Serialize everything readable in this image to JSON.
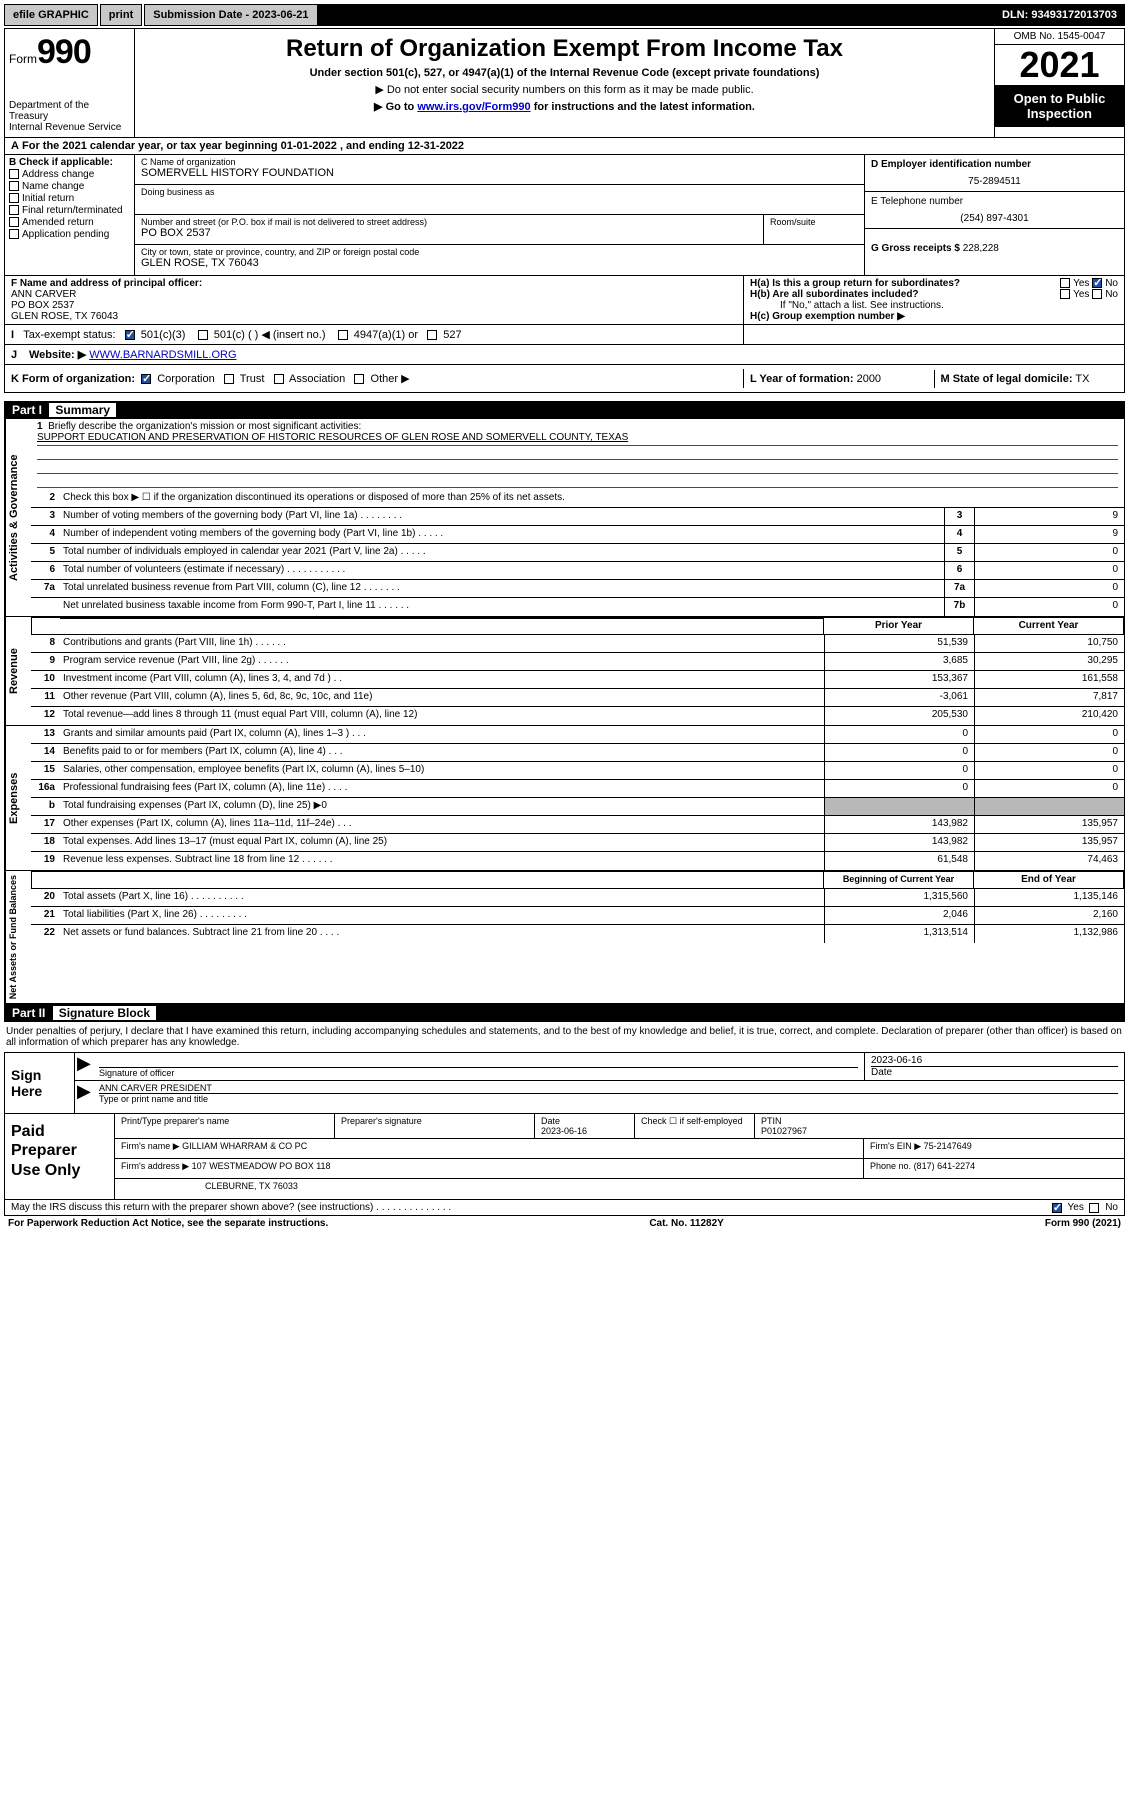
{
  "topbar": {
    "efile": "efile GRAPHIC",
    "print": "print",
    "submission_label": "Submission Date - 2023-06-21",
    "dln": "DLN: 93493172013703"
  },
  "header": {
    "form_prefix": "Form",
    "form_number": "990",
    "dept": "Department of the Treasury\nInternal Revenue Service",
    "title": "Return of Organization Exempt From Income Tax",
    "sub1": "Under section 501(c), 527, or 4947(a)(1) of the Internal Revenue Code (except private foundations)",
    "sub2": "▶ Do not enter social security numbers on this form as it may be made public.",
    "sub3_pre": "▶ Go to ",
    "sub3_link": "www.irs.gov/Form990",
    "sub3_post": " for instructions and the latest information.",
    "omb": "OMB No. 1545-0047",
    "year": "2021",
    "otp": "Open to Public Inspection"
  },
  "lineA": "For the 2021 calendar year, or tax year beginning 01-01-2022   , and ending 12-31-2022",
  "boxB": {
    "label": "B Check if applicable:",
    "items": [
      "Address change",
      "Name change",
      "Initial return",
      "Final return/terminated",
      "Amended return",
      "Application pending"
    ]
  },
  "boxC": {
    "name_label": "C Name of organization",
    "name": "SOMERVELL HISTORY FOUNDATION",
    "dba_label": "Doing business as",
    "dba": "",
    "addr_label": "Number and street (or P.O. box if mail is not delivered to street address)",
    "suite_label": "Room/suite",
    "addr": "PO BOX 2537",
    "city_label": "City or town, state or province, country, and ZIP or foreign postal code",
    "city": "GLEN ROSE, TX  76043"
  },
  "boxD": {
    "label": "D Employer identification number",
    "val": "75-2894511"
  },
  "boxE": {
    "label": "E Telephone number",
    "val": "(254) 897-4301"
  },
  "boxG": {
    "label": "G Gross receipts $",
    "val": "228,228"
  },
  "boxF": {
    "label": "F Name and address of principal officer:",
    "name": "ANN CARVER",
    "addr1": "PO BOX 2537",
    "addr2": "GLEN ROSE, TX  76043"
  },
  "boxH": {
    "a": "H(a)  Is this a group return for subordinates?",
    "b": "H(b)  Are all subordinates included?",
    "b_note": "If \"No,\" attach a list. See instructions.",
    "c": "H(c)  Group exemption number ▶"
  },
  "lineI": {
    "label": "Tax-exempt status:",
    "opts": [
      "501(c)(3)",
      "501(c) (  ) ◀ (insert no.)",
      "4947(a)(1) or",
      "527"
    ]
  },
  "lineJ": {
    "label": "Website: ▶",
    "val": "WWW.BARNARDSMILL.ORG"
  },
  "lineK": {
    "label": "K Form of organization:",
    "opts": [
      "Corporation",
      "Trust",
      "Association",
      "Other ▶"
    ]
  },
  "lineL": {
    "label": "L Year of formation:",
    "val": "2000"
  },
  "lineM": {
    "label": "M State of legal domicile:",
    "val": "TX"
  },
  "part1": {
    "header": "Part I",
    "title": "Summary",
    "q1": "Briefly describe the organization's mission or most significant activities:",
    "mission": "SUPPORT EDUCATION AND PRESERVATION OF HISTORIC RESOURCES OF GLEN ROSE AND SOMERVELL COUNTY, TEXAS",
    "q2": "Check this box ▶ ☐  if the organization discontinued its operations or disposed of more than 25% of its net assets.",
    "rows_gov": [
      {
        "n": "3",
        "t": "Number of voting members of the governing body (Part VI, line 1a)   .    .    .    .    .    .    .    .",
        "cn": "3",
        "v": "9"
      },
      {
        "n": "4",
        "t": "Number of independent voting members of the governing body (Part VI, line 1b)  .    .    .    .    .",
        "cn": "4",
        "v": "9"
      },
      {
        "n": "5",
        "t": "Total number of individuals employed in calendar year 2021 (Part V, line 2a)    .    .    .    .    .",
        "cn": "5",
        "v": "0"
      },
      {
        "n": "6",
        "t": "Total number of volunteers (estimate if necessary)   .    .    .    .    .    .    .    .    .    .    .",
        "cn": "6",
        "v": "0"
      },
      {
        "n": "7a",
        "t": "Total unrelated business revenue from Part VIII, column (C), line 12   .    .    .    .    .    .    .",
        "cn": "7a",
        "v": "0"
      },
      {
        "n": "",
        "t": "Net unrelated business taxable income from Form 990-T, Part I, line 11   .    .    .    .    .    .",
        "cn": "7b",
        "v": "0"
      }
    ],
    "col_hdr1": "Prior Year",
    "col_hdr2": "Current Year",
    "rows_rev": [
      {
        "n": "8",
        "t": "Contributions and grants (Part VIII, line 1h)   .    .    .    .    .    .",
        "c1": "51,539",
        "c2": "10,750"
      },
      {
        "n": "9",
        "t": "Program service revenue (Part VIII, line 2g)   .    .    .    .    .    .",
        "c1": "3,685",
        "c2": "30,295"
      },
      {
        "n": "10",
        "t": "Investment income (Part VIII, column (A), lines 3, 4, and 7d )   .    .",
        "c1": "153,367",
        "c2": "161,558"
      },
      {
        "n": "11",
        "t": "Other revenue (Part VIII, column (A), lines 5, 6d, 8c, 9c, 10c, and 11e)",
        "c1": "-3,061",
        "c2": "7,817"
      },
      {
        "n": "12",
        "t": "Total revenue—add lines 8 through 11 (must equal Part VIII, column (A), line 12)",
        "c1": "205,530",
        "c2": "210,420"
      }
    ],
    "rows_exp": [
      {
        "n": "13",
        "t": "Grants and similar amounts paid (Part IX, column (A), lines 1–3 )   .    .    .",
        "c1": "0",
        "c2": "0"
      },
      {
        "n": "14",
        "t": "Benefits paid to or for members (Part IX, column (A), line 4)   .    .    .",
        "c1": "0",
        "c2": "0"
      },
      {
        "n": "15",
        "t": "Salaries, other compensation, employee benefits (Part IX, column (A), lines 5–10)",
        "c1": "0",
        "c2": "0"
      },
      {
        "n": "16a",
        "t": "Professional fundraising fees (Part IX, column (A), line 11e)   .    .    .    .",
        "c1": "0",
        "c2": "0"
      },
      {
        "n": "b",
        "t": "Total fundraising expenses (Part IX, column (D), line 25) ▶0",
        "c1": "",
        "c2": "",
        "grey": true
      },
      {
        "n": "17",
        "t": "Other expenses (Part IX, column (A), lines 11a–11d, 11f–24e)  .    .    .",
        "c1": "143,982",
        "c2": "135,957"
      },
      {
        "n": "18",
        "t": "Total expenses. Add lines 13–17 (must equal Part IX, column (A), line 25)",
        "c1": "143,982",
        "c2": "135,957"
      },
      {
        "n": "19",
        "t": "Revenue less expenses. Subtract line 18 from line 12   .    .    .    .    .    .",
        "c1": "61,548",
        "c2": "74,463"
      }
    ],
    "col_hdr3": "Beginning of Current Year",
    "col_hdr4": "End of Year",
    "rows_net": [
      {
        "n": "20",
        "t": "Total assets (Part X, line 16)  .    .    .    .    .    .    .    .    .    .",
        "c1": "1,315,560",
        "c2": "1,135,146"
      },
      {
        "n": "21",
        "t": "Total liabilities (Part X, line 26)  .    .    .    .    .    .    .    .    .",
        "c1": "2,046",
        "c2": "2,160"
      },
      {
        "n": "22",
        "t": "Net assets or fund balances. Subtract line 21 from line 20  .    .    .    .",
        "c1": "1,313,514",
        "c2": "1,132,986"
      }
    ],
    "vlabels": [
      "Activities & Governance",
      "Revenue",
      "Expenses",
      "Net Assets or Fund Balances"
    ]
  },
  "part2": {
    "header": "Part II",
    "title": "Signature Block",
    "decl": "Under penalties of perjury, I declare that I have examined this return, including accompanying schedules and statements, and to the best of my knowledge and belief, it is true, correct, and complete. Declaration of preparer (other than officer) is based on all information of which preparer has any knowledge.",
    "sign_here": "Sign Here",
    "sig_officer_label": "Signature of officer",
    "sig_date": "2023-06-16",
    "date_label": "Date",
    "officer_name": "ANN CARVER PRESIDENT",
    "officer_name_label": "Type or print name and title",
    "paid": "Paid Preparer Use Only",
    "prep_hdrs": [
      "Print/Type preparer's name",
      "Preparer's signature",
      "Date",
      "",
      "PTIN"
    ],
    "prep_date": "2023-06-16",
    "prep_check": "Check ☐ if self-employed",
    "ptin": "P01027967",
    "firm_name_label": "Firm's name    ▶",
    "firm_name": "GILLIAM WHARRAM & CO PC",
    "firm_ein_label": "Firm's EIN ▶",
    "firm_ein": "75-2147649",
    "firm_addr_label": "Firm's address ▶",
    "firm_addr1": "107 WESTMEADOW PO BOX 118",
    "firm_addr2": "CLEBURNE, TX  76033",
    "phone_label": "Phone no.",
    "phone": "(817) 641-2274",
    "may_irs": "May the IRS discuss this return with the preparer shown above? (see instructions)   .    .    .    .    .    .    .    .    .    .    .    .    .    ."
  },
  "footer": {
    "left": "For Paperwork Reduction Act Notice, see the separate instructions.",
    "mid": "Cat. No. 11282Y",
    "right": "Form 990 (2021)"
  },
  "yes": "Yes",
  "no": "No"
}
